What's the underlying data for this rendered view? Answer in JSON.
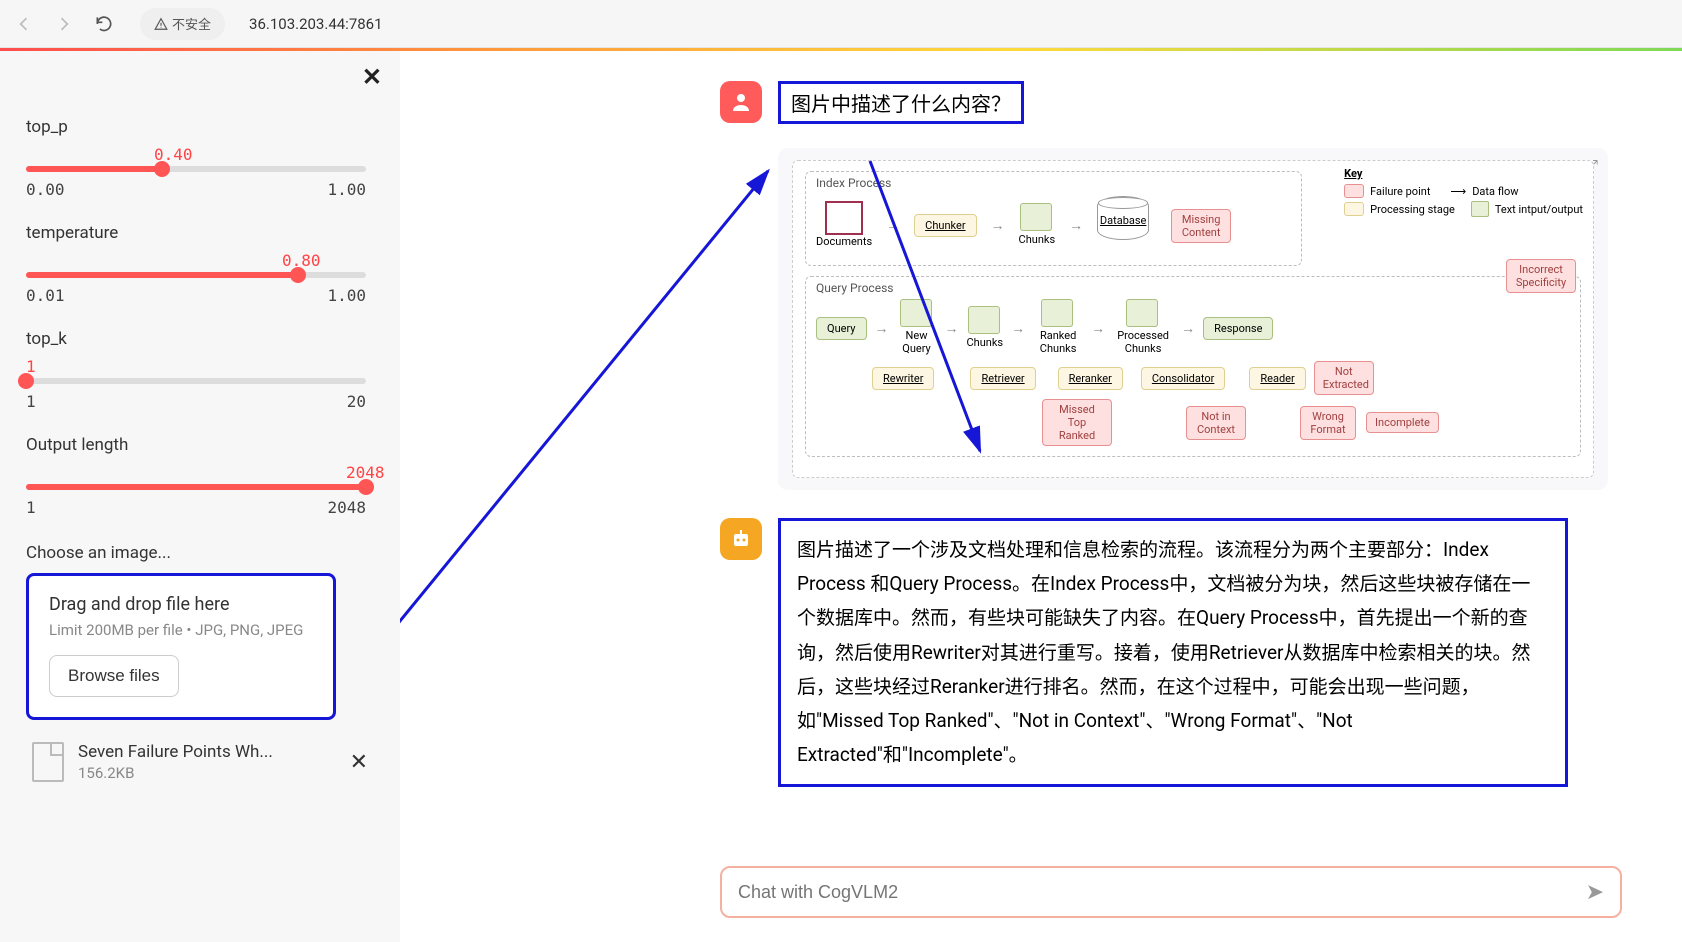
{
  "browser": {
    "insecure_label": "不安全",
    "url": "36.103.203.44:7861"
  },
  "sidebar": {
    "params": [
      {
        "label": "top_p",
        "value": "0.40",
        "min": "0.00",
        "max": "1.00",
        "fill_pct": 40
      },
      {
        "label": "temperature",
        "value": "0.80",
        "min": "0.01",
        "max": "1.00",
        "fill_pct": 80
      },
      {
        "label": "top_k",
        "value": "1",
        "min": "1",
        "max": "20",
        "fill_pct": 0
      },
      {
        "label": "Output length",
        "value": "2048",
        "min": "1",
        "max": "2048",
        "fill_pct": 100
      }
    ],
    "choose_label": "Choose an image...",
    "dropzone": {
      "title": "Drag and drop file here",
      "sub": "Limit 200MB per file • JPG, PNG, JPEG",
      "browse": "Browse files"
    },
    "file": {
      "name": "Seven Failure Points Wh...",
      "size": "156.2KB"
    }
  },
  "chat": {
    "user_question": "图片中描述了什么内容？",
    "answer": "图片描述了一个涉及文档处理和信息检索的流程。该流程分为两个主要部分：Index Process 和Query Process。在Index Process中，文档被分为块，然后这些块被存储在一个数据库中。然而，有些块可能缺失了内容。在Query Process中，首先提出一个新的查询，然后使用Rewriter对其进行重写。接着，使用Retriever从数据库中检索相关的块。然后，这些块经过Reranker进行排名。然而，在这个过程中，可能会出现一些问题，如\"Missed Top Ranked\"、\"Not in Context\"、\"Wrong Format\"、\"Not Extracted\"和\"Incomplete\"。",
    "input_placeholder": "Chat with CogVLM2"
  },
  "diagram": {
    "index_title": "Index Process",
    "query_title": "Query Process",
    "key_title": "Key",
    "key": {
      "failure": "Failure point",
      "stage": "Processing stage",
      "dataflow": "Data flow",
      "textio": "Text intput/output"
    },
    "nodes": {
      "documents": "Documents",
      "chunker": "Chunker",
      "chunks": "Chunks",
      "database": "Database",
      "missing_content": "Missing Content",
      "query": "Query",
      "new_query": "New Query",
      "rewriter": "Rewriter",
      "retriever": "Retriever",
      "chunks2": "Chunks",
      "reranker": "Reranker",
      "ranked_chunks": "Ranked Chunks",
      "consolidator": "Consolidator",
      "processed_chunks": "Processed Chunks",
      "reader": "Reader",
      "response": "Response",
      "missed_top": "Missed Top Ranked",
      "not_in_context": "Not in Context",
      "wrong_format": "Wrong Format",
      "not_extracted": "Not Extracted",
      "incomplete": "Incomplete",
      "incorrect_spec": "Incorrect Specificity"
    },
    "colors": {
      "failure_bg": "#ffe0e0",
      "stage_bg": "#fdf6e3",
      "text_bg": "#e8f0d8"
    }
  }
}
